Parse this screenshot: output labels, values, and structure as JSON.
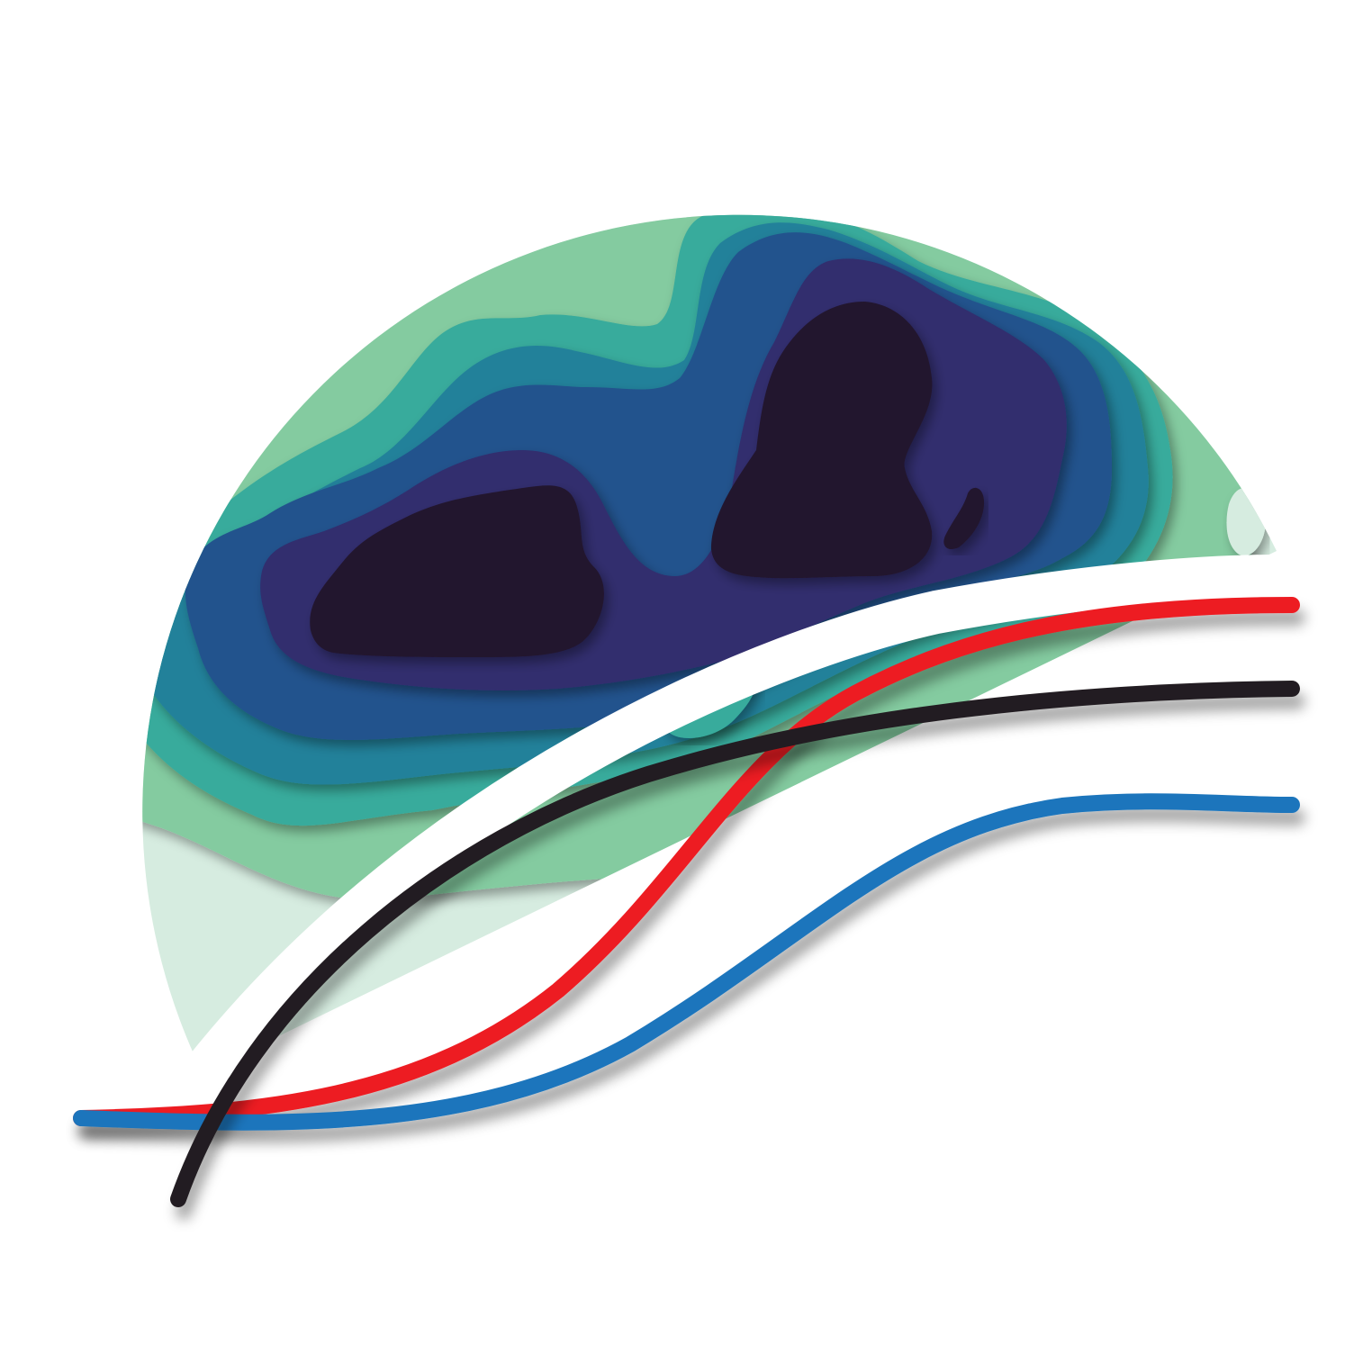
{
  "palette": {
    "background": "#ffffff",
    "outer_disc": "#d6ece0",
    "contour_levels": [
      "#84cba0",
      "#37ab9c",
      "#23819a",
      "#24528d",
      "#302d6e",
      "#23152e"
    ],
    "curve_red": "#ed1c24",
    "curve_black": "#231f20",
    "curve_blue": "#1b75bc",
    "curve_halo": "#ffffff"
  },
  "icons": {
    "contour_map": "topographic-contour-disc",
    "curves": "three-sigmoid-curves"
  }
}
